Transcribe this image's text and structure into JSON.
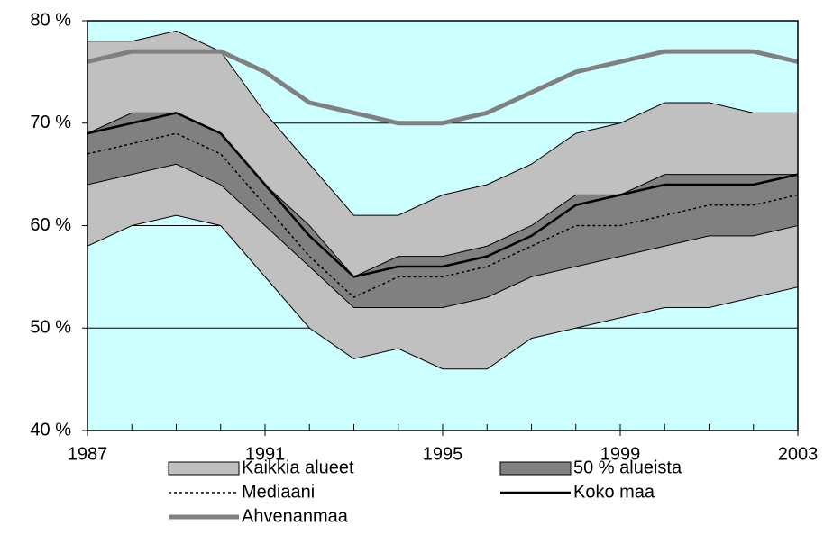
{
  "chart_data": {
    "type": "band-line",
    "x": [
      1987,
      1988,
      1989,
      1990,
      1991,
      1992,
      1993,
      1994,
      1995,
      1996,
      1997,
      1998,
      1999,
      2000,
      2001,
      2002,
      2003
    ],
    "xlim": [
      1987,
      2003
    ],
    "xticks": [
      1987,
      1991,
      1995,
      1999,
      2003
    ],
    "ylim": [
      40,
      80
    ],
    "yticks": [
      {
        "value": 40,
        "label": "40 %"
      },
      {
        "value": 50,
        "label": "50 %"
      },
      {
        "value": 60,
        "label": "60 %"
      },
      {
        "value": 70,
        "label": "70 %"
      },
      {
        "value": 80,
        "label": "80 %"
      }
    ],
    "grid": true,
    "background": "#ccffff",
    "series": [
      {
        "name": "Kaikkia alueet",
        "color": "#c0c0c0",
        "style": "band",
        "values": [
          78,
          78,
          79,
          77,
          71,
          66,
          61,
          61,
          63,
          64,
          66,
          69,
          70,
          72,
          72,
          71,
          71
        ],
        "lower": [
          58,
          60,
          61,
          60,
          55,
          50,
          47,
          48,
          46,
          46,
          49,
          50,
          51,
          52,
          52,
          53,
          54
        ]
      },
      {
        "name": "50 % alueista",
        "color": "#808080",
        "style": "band",
        "values": [
          69,
          71,
          71,
          69,
          64,
          60,
          55,
          57,
          57,
          58,
          60,
          63,
          63,
          65,
          65,
          65,
          65
        ],
        "lower": [
          64,
          65,
          66,
          64,
          60,
          56,
          52,
          52,
          52,
          53,
          55,
          56,
          57,
          58,
          59,
          59,
          60
        ]
      },
      {
        "name": "Mediaani",
        "color": "#000000",
        "style": "dotted",
        "values": [
          67,
          68,
          69,
          67,
          62,
          57,
          53,
          55,
          55,
          56,
          58,
          60,
          60,
          61,
          62,
          62,
          63
        ]
      },
      {
        "name": "Koko maa",
        "color": "#000000",
        "style": "solid",
        "values": [
          69,
          70,
          71,
          69,
          64,
          59,
          55,
          56,
          56,
          57,
          59,
          62,
          63,
          64,
          64,
          64,
          65
        ]
      },
      {
        "name": "Ahvenanmaa",
        "color": "#808080",
        "style": "thick",
        "values": [
          76,
          77,
          77,
          77,
          75,
          72,
          71,
          70,
          70,
          71,
          73,
          75,
          76,
          77,
          77,
          77,
          76
        ]
      }
    ]
  }
}
